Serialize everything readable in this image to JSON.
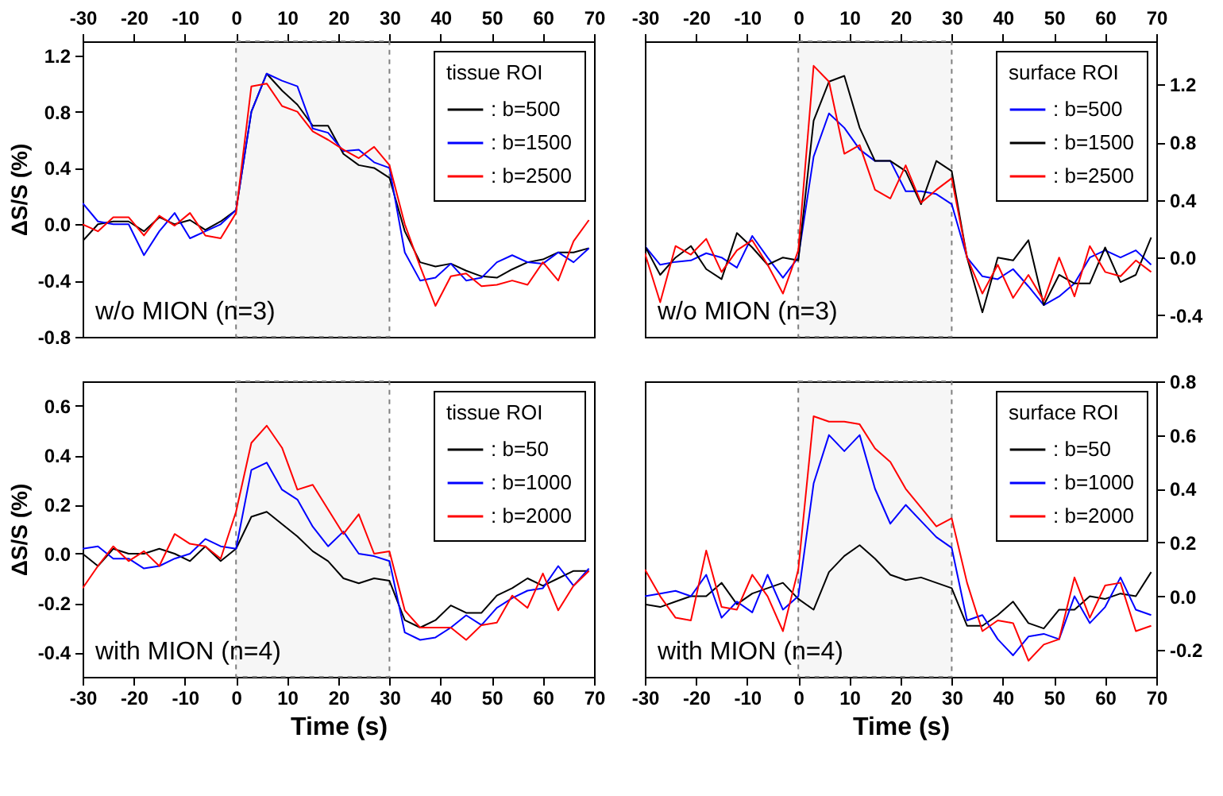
{
  "chart_data": [
    {
      "type": "line",
      "ylabel": "ΔS/S (%)",
      "legend_title": "tissue ROI",
      "legend": "top right",
      "grid": false,
      "annotations": [
        "w/o MION (n=3)"
      ],
      "x": [
        -30,
        -27,
        -24,
        -21,
        -18,
        -15,
        -12,
        -9,
        -6,
        -3,
        0,
        3,
        6,
        9,
        12,
        15,
        18,
        21,
        24,
        27,
        30,
        33,
        36,
        39,
        42,
        45,
        48,
        51,
        54,
        57,
        60,
        63,
        66,
        69
      ],
      "xlim": [
        -30,
        70
      ],
      "xticks": [
        -30,
        -20,
        -10,
        0,
        10,
        20,
        30,
        40,
        50,
        60,
        70
      ],
      "ylim": [
        -0.8,
        1.3
      ],
      "yticks": [
        -0.8,
        -0.4,
        {
          "value": 0,
          "label": "0.0"
        },
        0.4,
        0.8,
        1.2
      ],
      "bands": [
        {
          "axis": "x",
          "from": 0,
          "to": 30,
          "color": "#808080"
        }
      ],
      "series": [
        {
          "name": ": b=500",
          "color": "#000000",
          "values": [
            -0.12,
            0.0,
            0.02,
            0.02,
            -0.05,
            0.05,
            0.0,
            0.03,
            -0.04,
            0.02,
            0.1,
            0.8,
            1.07,
            0.95,
            0.85,
            0.7,
            0.7,
            0.5,
            0.42,
            0.4,
            0.33,
            -0.05,
            -0.27,
            -0.3,
            -0.28,
            -0.33,
            -0.37,
            -0.38,
            -0.32,
            -0.27,
            -0.25,
            -0.2,
            -0.2,
            -0.17
          ]
        },
        {
          "name": ": b=1500",
          "color": "#0000ff",
          "values": [
            0.15,
            0.02,
            0.0,
            0.0,
            -0.22,
            -0.05,
            0.08,
            -0.1,
            -0.05,
            0.0,
            0.1,
            0.8,
            1.07,
            1.02,
            0.98,
            0.68,
            0.65,
            0.52,
            0.53,
            0.44,
            0.4,
            -0.2,
            -0.4,
            -0.38,
            -0.28,
            -0.4,
            -0.38,
            -0.27,
            -0.22,
            -0.27,
            -0.28,
            -0.2,
            -0.27,
            -0.17
          ]
        },
        {
          "name": ": b=2500",
          "color": "#ff0000",
          "values": [
            0.0,
            -0.05,
            0.05,
            0.05,
            -0.08,
            0.06,
            -0.01,
            0.08,
            -0.08,
            -0.1,
            0.08,
            0.98,
            1.0,
            0.84,
            0.8,
            0.66,
            0.6,
            0.53,
            0.47,
            0.55,
            0.42,
            0.0,
            -0.3,
            -0.58,
            -0.37,
            -0.35,
            -0.44,
            -0.43,
            -0.4,
            -0.43,
            -0.27,
            -0.4,
            -0.12,
            0.03
          ]
        }
      ]
    },
    {
      "type": "line",
      "legend_title": "surface ROI",
      "legend": "top right",
      "grid": false,
      "annotations": [
        "w/o MION (n=3)"
      ],
      "x": [
        -30,
        -27,
        -24,
        -21,
        -18,
        -15,
        -12,
        -9,
        -6,
        -3,
        0,
        3,
        6,
        9,
        12,
        15,
        18,
        21,
        24,
        27,
        30,
        33,
        36,
        39,
        42,
        45,
        48,
        51,
        54,
        57,
        60,
        63,
        66,
        69
      ],
      "xlim": [
        -30,
        70
      ],
      "xticks": [
        -30,
        -20,
        -10,
        0,
        10,
        20,
        30,
        40,
        50,
        60,
        70
      ],
      "y2lim": [
        -0.55,
        1.5
      ],
      "y2ticks": [
        -0.4,
        {
          "value": 0,
          "label": "0.0"
        },
        0.4,
        0.8,
        1.2
      ],
      "bands": [
        {
          "axis": "x",
          "from": 0,
          "to": 30,
          "color": "#808080"
        }
      ],
      "series": [
        {
          "name": ": b=500",
          "color": "#0000ff",
          "axis": "y2",
          "values": [
            0.08,
            -0.05,
            -0.03,
            -0.02,
            0.03,
            0.0,
            -0.07,
            0.15,
            0.0,
            -0.14,
            0.0,
            0.7,
            1.0,
            0.9,
            0.75,
            0.67,
            0.67,
            0.46,
            0.46,
            0.44,
            0.37,
            0.0,
            -0.13,
            -0.15,
            -0.08,
            -0.2,
            -0.33,
            -0.27,
            -0.18,
            0.0,
            0.05,
            0.0,
            0.05,
            -0.05
          ]
        },
        {
          "name": ": b=1500",
          "color": "#000000",
          "axis": "y2",
          "values": [
            0.08,
            -0.12,
            0.0,
            0.08,
            -0.08,
            -0.15,
            0.17,
            0.07,
            -0.05,
            0.0,
            -0.02,
            0.95,
            1.22,
            1.26,
            0.9,
            0.67,
            0.67,
            0.6,
            0.37,
            0.67,
            0.6,
            0.0,
            -0.38,
            0.0,
            -0.02,
            0.12,
            -0.33,
            -0.12,
            -0.18,
            -0.18,
            0.07,
            -0.17,
            -0.12,
            0.14
          ]
        },
        {
          "name": ": b=2500",
          "color": "#ff0000",
          "axis": "y2",
          "values": [
            0.03,
            -0.31,
            0.08,
            0.02,
            0.13,
            -0.1,
            0.05,
            0.12,
            -0.05,
            -0.25,
            0.05,
            1.33,
            1.22,
            0.72,
            0.78,
            0.47,
            0.41,
            0.64,
            0.38,
            0.47,
            0.55,
            0.0,
            -0.25,
            -0.05,
            -0.28,
            -0.12,
            -0.3,
            0.0,
            -0.27,
            0.08,
            -0.1,
            -0.13,
            -0.02,
            -0.1
          ]
        }
      ]
    },
    {
      "type": "line",
      "xlabel": "Time (s)",
      "ylabel": "ΔS/S (%)",
      "legend_title": "tissue ROI",
      "legend": "top right",
      "grid": false,
      "annotations": [
        "with MION (n=4)"
      ],
      "x": [
        -30,
        -27,
        -24,
        -21,
        -18,
        -15,
        -12,
        -9,
        -6,
        -3,
        0,
        3,
        6,
        9,
        12,
        15,
        18,
        21,
        24,
        27,
        30,
        33,
        36,
        39,
        42,
        45,
        48,
        51,
        54,
        57,
        60,
        63,
        66,
        69
      ],
      "xlim": [
        -30,
        70
      ],
      "xticks": [
        -30,
        -20,
        -10,
        0,
        10,
        20,
        30,
        40,
        50,
        60,
        70
      ],
      "ylim": [
        -0.5,
        0.7
      ],
      "yticks": [
        -0.4,
        -0.2,
        {
          "value": 0,
          "label": "0.0"
        },
        0.2,
        0.4,
        0.6
      ],
      "bands": [
        {
          "axis": "x",
          "from": 0,
          "to": 30,
          "color": "#808080"
        }
      ],
      "series": [
        {
          "name": ": b=50",
          "color": "#000000",
          "values": [
            0.0,
            -0.05,
            0.02,
            0.0,
            0.0,
            0.02,
            0.0,
            -0.03,
            0.03,
            -0.03,
            0.02,
            0.15,
            0.17,
            0.12,
            0.07,
            0.01,
            -0.03,
            -0.1,
            -0.12,
            -0.1,
            -0.11,
            -0.27,
            -0.3,
            -0.27,
            -0.21,
            -0.24,
            -0.24,
            -0.17,
            -0.14,
            -0.1,
            -0.13,
            -0.1,
            -0.07,
            -0.07
          ]
        },
        {
          "name": ": b=1000",
          "color": "#0000ff",
          "values": [
            0.02,
            0.03,
            -0.02,
            -0.02,
            -0.06,
            -0.05,
            -0.02,
            0.0,
            0.06,
            0.03,
            0.02,
            0.34,
            0.37,
            0.26,
            0.22,
            0.11,
            0.03,
            0.09,
            0.0,
            -0.01,
            -0.03,
            -0.32,
            -0.35,
            -0.34,
            -0.3,
            -0.25,
            -0.29,
            -0.22,
            -0.18,
            -0.15,
            -0.14,
            -0.05,
            -0.13,
            -0.06
          ]
        },
        {
          "name": ": b=2000",
          "color": "#ff0000",
          "values": [
            -0.14,
            -0.05,
            0.03,
            -0.03,
            0.01,
            -0.05,
            0.08,
            0.04,
            0.03,
            -0.02,
            0.17,
            0.45,
            0.52,
            0.43,
            0.26,
            0.28,
            0.18,
            0.08,
            0.16,
            0.0,
            0.01,
            -0.23,
            -0.3,
            -0.3,
            -0.3,
            -0.35,
            -0.29,
            -0.28,
            -0.17,
            -0.22,
            -0.08,
            -0.23,
            -0.13,
            -0.07
          ]
        }
      ]
    },
    {
      "type": "line",
      "xlabel": "Time (s)",
      "legend_title": "surface ROI",
      "legend": "top right",
      "grid": false,
      "annotations": [
        "with MION (n=4)"
      ],
      "x": [
        -30,
        -27,
        -24,
        -21,
        -18,
        -15,
        -12,
        -9,
        -6,
        -3,
        0,
        3,
        6,
        9,
        12,
        15,
        18,
        21,
        24,
        27,
        30,
        33,
        36,
        39,
        42,
        45,
        48,
        51,
        54,
        57,
        60,
        63,
        66,
        69
      ],
      "xlim": [
        -30,
        70
      ],
      "xticks": [
        -30,
        -20,
        -10,
        0,
        10,
        20,
        30,
        40,
        50,
        60,
        70
      ],
      "y2lim": [
        -0.3,
        0.8
      ],
      "y2ticks": [
        -0.2,
        {
          "value": 0,
          "label": "0.0"
        },
        0.2,
        0.4,
        0.6,
        0.8
      ],
      "bands": [
        {
          "axis": "x",
          "from": 0,
          "to": 30,
          "color": "#808080"
        }
      ],
      "series": [
        {
          "name": ": b=50",
          "color": "#000000",
          "axis": "y2",
          "values": [
            -0.03,
            -0.04,
            -0.02,
            0.0,
            0.0,
            0.05,
            -0.03,
            0.01,
            0.03,
            0.05,
            -0.01,
            -0.05,
            0.09,
            0.15,
            0.19,
            0.14,
            0.08,
            0.06,
            0.07,
            0.05,
            0.03,
            -0.11,
            -0.11,
            -0.07,
            -0.02,
            -0.1,
            -0.12,
            -0.05,
            -0.05,
            0.0,
            -0.01,
            0.01,
            0.0,
            0.09
          ]
        },
        {
          "name": ": b=1000",
          "color": "#0000ff",
          "axis": "y2",
          "values": [
            0.0,
            0.01,
            0.02,
            0.0,
            0.08,
            -0.08,
            -0.02,
            -0.06,
            0.08,
            -0.05,
            0.0,
            0.42,
            0.6,
            0.54,
            0.6,
            0.4,
            0.27,
            0.34,
            0.28,
            0.22,
            0.18,
            -0.09,
            -0.07,
            -0.16,
            -0.22,
            -0.15,
            -0.14,
            -0.16,
            0.0,
            -0.1,
            -0.04,
            0.07,
            -0.05,
            -0.07
          ]
        },
        {
          "name": ": b=2000",
          "color": "#ff0000",
          "axis": "y2",
          "values": [
            0.1,
            0.0,
            -0.08,
            -0.09,
            0.17,
            -0.04,
            -0.05,
            0.08,
            0.0,
            -0.13,
            0.1,
            0.67,
            0.65,
            0.65,
            0.64,
            0.55,
            0.5,
            0.4,
            0.33,
            0.26,
            0.29,
            0.05,
            -0.13,
            -0.09,
            -0.1,
            -0.24,
            -0.18,
            -0.16,
            0.07,
            -0.08,
            0.04,
            0.05,
            -0.13,
            -0.11
          ]
        }
      ]
    }
  ]
}
